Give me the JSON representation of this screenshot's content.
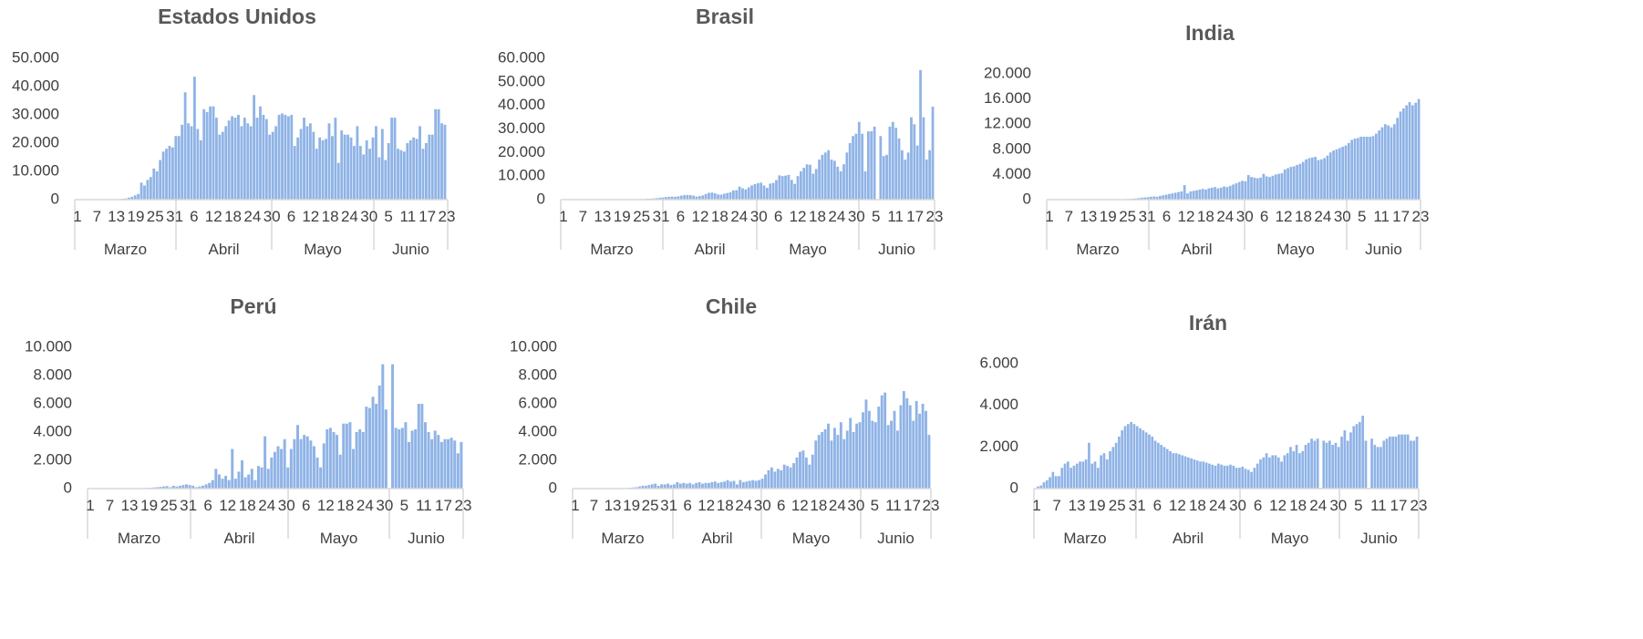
{
  "colors": {
    "bar": "#8fb3e6",
    "axis": "#d9d9d9",
    "text": "#404040",
    "title": "#595959"
  },
  "chart_data": [
    {
      "type": "bar",
      "title": "Estados Unidos",
      "ylim": [
        0,
        50000
      ],
      "yticks": [
        "0",
        "10.000",
        "20.000",
        "30.000",
        "40.000",
        "50.000"
      ],
      "xtick_labels": [
        "1",
        "7",
        "13",
        "19",
        "25",
        "31",
        "6",
        "12",
        "18",
        "24",
        "30",
        "6",
        "12",
        "18",
        "24",
        "30",
        "5",
        "11",
        "17",
        "23"
      ],
      "months": [
        "Marzo",
        "Abril",
        "Mayo",
        "Junio"
      ],
      "values": [
        0,
        0,
        0,
        0,
        0,
        0,
        0,
        0,
        0,
        0,
        0,
        100,
        100,
        200,
        300,
        400,
        700,
        1000,
        1500,
        2000,
        6000,
        5000,
        7000,
        8000,
        11000,
        10000,
        14000,
        17000,
        18000,
        19000,
        18500,
        22500,
        22500,
        26500,
        38000,
        27000,
        26000,
        43500,
        25000,
        21000,
        32000,
        31000,
        33000,
        33000,
        29000,
        23000,
        24000,
        26000,
        28000,
        29500,
        29000,
        30000,
        26000,
        29000,
        27000,
        26000,
        37000,
        29000,
        33000,
        30000,
        28500,
        23000,
        24000,
        26000,
        30000,
        30500,
        30000,
        29500,
        30000,
        19000,
        22000,
        25000,
        29000,
        26000,
        27000,
        24000,
        18000,
        22000,
        21000,
        21500,
        27000,
        22500,
        29000,
        13000,
        24500,
        23000,
        23000,
        22000,
        19000,
        26000,
        19000,
        16000,
        21000,
        18000,
        22000,
        26000,
        15000,
        25000,
        14000,
        20000,
        29000,
        29000,
        18000,
        17500,
        17000,
        20000,
        21000,
        22000,
        21500,
        26000,
        18000,
        20000,
        23000,
        23000,
        32000,
        32000,
        27000,
        26500
      ]
    },
    {
      "type": "bar",
      "title": "Brasil",
      "ylim": [
        0,
        60000
      ],
      "yticks": [
        "0",
        "10.000",
        "20.000",
        "30.000",
        "40.000",
        "50.000",
        "60.000"
      ],
      "xtick_labels": [
        "1",
        "7",
        "13",
        "19",
        "25",
        "31",
        "6",
        "12",
        "18",
        "24",
        "30",
        "6",
        "12",
        "18",
        "24",
        "30",
        "5",
        "11",
        "17",
        "23"
      ],
      "months": [
        "Marzo",
        "Abril",
        "Mayo",
        "Junio"
      ],
      "values": [
        0,
        0,
        0,
        0,
        0,
        0,
        0,
        0,
        0,
        0,
        0,
        0,
        0,
        0,
        0,
        0,
        0,
        0,
        0,
        100,
        100,
        100,
        200,
        200,
        200,
        300,
        300,
        400,
        400,
        500,
        600,
        800,
        900,
        1100,
        1200,
        1300,
        1200,
        1400,
        1700,
        1900,
        2000,
        1900,
        1700,
        1300,
        1500,
        1800,
        2400,
        2900,
        3000,
        2700,
        2200,
        2100,
        2500,
        2800,
        3100,
        3900,
        4000,
        5500,
        4800,
        4300,
        5200,
        6000,
        6600,
        7000,
        7200,
        6000,
        5000,
        6800,
        7100,
        8300,
        10300,
        10000,
        10200,
        10500,
        8400,
        6700,
        10000,
        12000,
        13500,
        15000,
        14800,
        11000,
        13000,
        17000,
        19000,
        20000,
        21000,
        17000,
        16500,
        14000,
        12000,
        15000,
        20000,
        24000,
        27000,
        28000,
        33000,
        28000,
        12000,
        29000,
        29000,
        31000,
        0,
        27000,
        18500,
        19000,
        31000,
        33000,
        30500,
        26000,
        21000,
        17000,
        20000,
        35000,
        32000,
        23000,
        55000,
        35000,
        17000,
        21000,
        39500
      ]
    },
    {
      "type": "bar",
      "title": "India",
      "ylim": [
        0,
        20000
      ],
      "yticks": [
        "0",
        "4.000",
        "8.000",
        "12.000",
        "16.000",
        "20.000"
      ],
      "xtick_labels": [
        "1",
        "7",
        "13",
        "19",
        "25",
        "31",
        "6",
        "12",
        "18",
        "24",
        "30",
        "6",
        "12",
        "18",
        "24",
        "30",
        "5",
        "11",
        "17",
        "23"
      ],
      "months": [
        "Marzo",
        "Abril",
        "Mayo",
        "Junio"
      ],
      "values": [
        0,
        0,
        0,
        0,
        0,
        0,
        0,
        0,
        0,
        0,
        0,
        0,
        0,
        0,
        0,
        0,
        0,
        0,
        0,
        0,
        0,
        0,
        0,
        50,
        80,
        100,
        100,
        150,
        200,
        250,
        300,
        350,
        400,
        450,
        500,
        450,
        600,
        700,
        800,
        900,
        1000,
        1100,
        1200,
        1300,
        2300,
        1000,
        1300,
        1400,
        1500,
        1600,
        1700,
        1600,
        1800,
        1900,
        2000,
        1800,
        1900,
        2100,
        2000,
        2200,
        2400,
        2600,
        2800,
        3000,
        2900,
        3900,
        3600,
        3500,
        3400,
        3500,
        4100,
        3700,
        3600,
        3800,
        4000,
        4100,
        4200,
        4800,
        5000,
        5200,
        5300,
        5500,
        5700,
        6000,
        6400,
        6600,
        6700,
        6800,
        6300,
        6400,
        6600,
        7000,
        7500,
        7800,
        8000,
        8200,
        8400,
        8600,
        9000,
        9500,
        9700,
        9800,
        10000,
        10000,
        10000,
        10000,
        10100,
        10500,
        11000,
        11500,
        12000,
        11800,
        11500,
        12000,
        13000,
        14000,
        14500,
        15000,
        15500,
        15000,
        15400,
        16000
      ]
    },
    {
      "type": "bar",
      "title": "Perú",
      "ylim": [
        0,
        10000
      ],
      "yticks": [
        "0",
        "2.000",
        "4.000",
        "6.000",
        "8.000",
        "10.000"
      ],
      "xtick_labels": [
        "1",
        "7",
        "13",
        "19",
        "25",
        "31",
        "6",
        "12",
        "18",
        "24",
        "30",
        "6",
        "12",
        "18",
        "24",
        "30",
        "5",
        "11",
        "17",
        "23"
      ],
      "months": [
        "Marzo",
        "Abril",
        "Mayo",
        "Junio"
      ],
      "values": [
        0,
        0,
        0,
        0,
        0,
        0,
        0,
        0,
        0,
        0,
        0,
        0,
        0,
        10,
        20,
        30,
        40,
        50,
        60,
        80,
        100,
        120,
        150,
        180,
        100,
        200,
        150,
        200,
        250,
        300,
        250,
        200,
        100,
        150,
        200,
        300,
        400,
        600,
        1400,
        1000,
        700,
        900,
        600,
        2800,
        700,
        1200,
        2000,
        800,
        1000,
        1400,
        600,
        1600,
        1500,
        3700,
        1400,
        2200,
        2600,
        3000,
        2800,
        3500,
        1500,
        2800,
        3500,
        4500,
        3500,
        3800,
        3700,
        3400,
        3000,
        2200,
        1500,
        3200,
        4200,
        4300,
        4000,
        3800,
        2400,
        4600,
        4600,
        4700,
        2800,
        4000,
        4200,
        4000,
        5800,
        5700,
        6500,
        6000,
        7300,
        8800,
        5600,
        0,
        8800,
        4300,
        4200,
        4300,
        4700,
        3300,
        4100,
        4200,
        6000,
        6000,
        4700,
        4000,
        3500,
        4100,
        3800,
        3300,
        3500,
        3500,
        3600,
        3400,
        2500,
        3300
      ]
    },
    {
      "type": "bar",
      "title": "Chile",
      "ylim": [
        0,
        10000
      ],
      "yticks": [
        "0",
        "2.000",
        "4.000",
        "6.000",
        "8.000",
        "10.000"
      ],
      "xtick_labels": [
        "1",
        "7",
        "13",
        "19",
        "25",
        "31",
        "6",
        "12",
        "18",
        "24",
        "30",
        "6",
        "12",
        "18",
        "24",
        "30",
        "5",
        "11",
        "17",
        "23"
      ],
      "months": [
        "Marzo",
        "Abril",
        "Mayo",
        "Junio"
      ],
      "values": [
        0,
        0,
        0,
        0,
        0,
        0,
        0,
        0,
        0,
        0,
        0,
        0,
        0,
        0,
        10,
        20,
        40,
        60,
        80,
        100,
        150,
        200,
        200,
        250,
        300,
        350,
        200,
        300,
        300,
        350,
        250,
        300,
        450,
        350,
        400,
        350,
        400,
        300,
        400,
        450,
        350,
        400,
        400,
        450,
        500,
        400,
        450,
        500,
        600,
        500,
        550,
        300,
        600,
        450,
        500,
        550,
        600,
        550,
        600,
        700,
        1000,
        1300,
        1500,
        1200,
        1400,
        1300,
        1700,
        1600,
        1500,
        1800,
        2200,
        2600,
        2700,
        2200,
        1700,
        2400,
        3400,
        3800,
        4000,
        4200,
        4600,
        3400,
        4300,
        3800,
        4700,
        3500,
        4100,
        5000,
        4000,
        4600,
        4700,
        5400,
        6300,
        5500,
        4800,
        4700,
        5800,
        6600,
        6800,
        4500,
        4800,
        5500,
        4100,
        5900,
        6900,
        6400,
        5900,
        4800,
        6200,
        5300,
        6000,
        5500,
        3800
      ]
    },
    {
      "type": "bar",
      "title": "Irán",
      "ylim": [
        0,
        6000
      ],
      "yticks": [
        "0",
        "2.000",
        "4.000",
        "6.000"
      ],
      "xtick_labels": [
        "1",
        "7",
        "13",
        "19",
        "25",
        "31",
        "6",
        "12",
        "18",
        "24",
        "30",
        "6",
        "12",
        "18",
        "24",
        "30",
        "5",
        "11",
        "17",
        "23"
      ],
      "months": [
        "Marzo",
        "Abril",
        "Mayo",
        "Junio"
      ],
      "values": [
        100,
        150,
        300,
        400,
        550,
        800,
        600,
        600,
        1000,
        1200,
        1300,
        1000,
        1100,
        1200,
        1300,
        1300,
        1400,
        2200,
        1200,
        1300,
        1000,
        1600,
        1700,
        1400,
        1800,
        2000,
        2200,
        2500,
        2800,
        3000,
        3100,
        3200,
        3100,
        3000,
        2900,
        2800,
        2700,
        2600,
        2500,
        2300,
        2200,
        2100,
        2000,
        1900,
        1800,
        1700,
        1700,
        1650,
        1600,
        1550,
        1500,
        1450,
        1400,
        1350,
        1300,
        1300,
        1250,
        1200,
        1150,
        1100,
        1200,
        1150,
        1100,
        1100,
        1150,
        1100,
        1000,
        1000,
        1050,
        950,
        900,
        800,
        1000,
        1200,
        1400,
        1500,
        1700,
        1500,
        1600,
        1600,
        1500,
        1300,
        1600,
        1700,
        2000,
        1800,
        2100,
        1700,
        1800,
        2100,
        2200,
        2400,
        2300,
        2400,
        0,
        2300,
        2200,
        2300,
        2100,
        2200,
        2000,
        2500,
        2800,
        2300,
        2700,
        3000,
        3100,
        3200,
        3500,
        2300,
        0,
        2400,
        2100,
        2000,
        2000,
        2300,
        2400,
        2500,
        2500,
        2500,
        2600,
        2600,
        2600,
        2600,
        2300,
        2300,
        2500
      ]
    }
  ]
}
